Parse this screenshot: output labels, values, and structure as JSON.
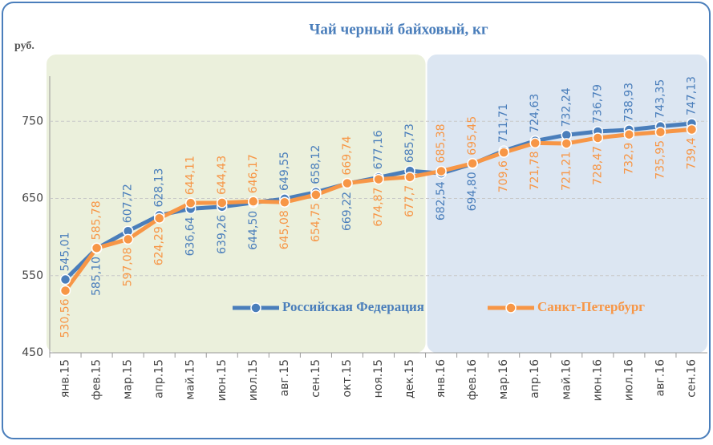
{
  "chart_data": {
    "type": "line",
    "title": "Чай черный байховый, кг",
    "y_label": "руб.",
    "categories": [
      "янв.15",
      "фев.15",
      "мар.15",
      "апр.15",
      "май.15",
      "июн.15",
      "июл.15",
      "авг.15",
      "сен.15",
      "окт.15",
      "ноя.15",
      "дек.15",
      "янв.16",
      "фев.16",
      "мар.16",
      "апр.16",
      "май.16",
      "июн.16",
      "июл.16",
      "авг.16",
      "сен.16"
    ],
    "series": [
      {
        "name": "Российская Федерация",
        "color": "#4a7ebb",
        "values": [
          545.01,
          585.1,
          607.72,
          628.13,
          636.64,
          639.26,
          644.5,
          649.55,
          658.12,
          669.22,
          677.16,
          685.73,
          682.54,
          694.8,
          711.71,
          724.63,
          732.24,
          736.79,
          738.93,
          743.35,
          747.13
        ],
        "value_labels": [
          "545,01",
          "585,10",
          "607,72",
          "628,13",
          "636,64",
          "639,26",
          "644,50",
          "649,55",
          "658,12",
          "669,22",
          "677,16",
          "685,73",
          "682,54",
          "694,80",
          "711,71",
          "724,63",
          "732,24",
          "736,79",
          "738,93",
          "743,35",
          "747,13"
        ]
      },
      {
        "name": "Санкт-Петербург",
        "color": "#f79646",
        "values": [
          530.56,
          585.78,
          597.08,
          624.29,
          644.11,
          644.43,
          646.17,
          645.08,
          654.75,
          669.74,
          674.87,
          677.7,
          685.38,
          695.45,
          709.6,
          721.78,
          721.21,
          728.47,
          732.9,
          735.95,
          739.4
        ],
        "value_labels": [
          "530,56",
          "585,78",
          "597,08",
          "624,29",
          "644,11",
          "644,43",
          "646,17",
          "645,08",
          "654,75",
          "669,74",
          "674,87",
          "677,7",
          "685,38",
          "695,45",
          "709,6",
          "721,78",
          "721,21",
          "728,47",
          "732,9",
          "735,95",
          "739,4"
        ]
      }
    ],
    "ylim": [
      450,
      850
    ],
    "yticks": [
      450,
      550,
      650,
      750
    ],
    "grid": true,
    "legend": "right"
  }
}
